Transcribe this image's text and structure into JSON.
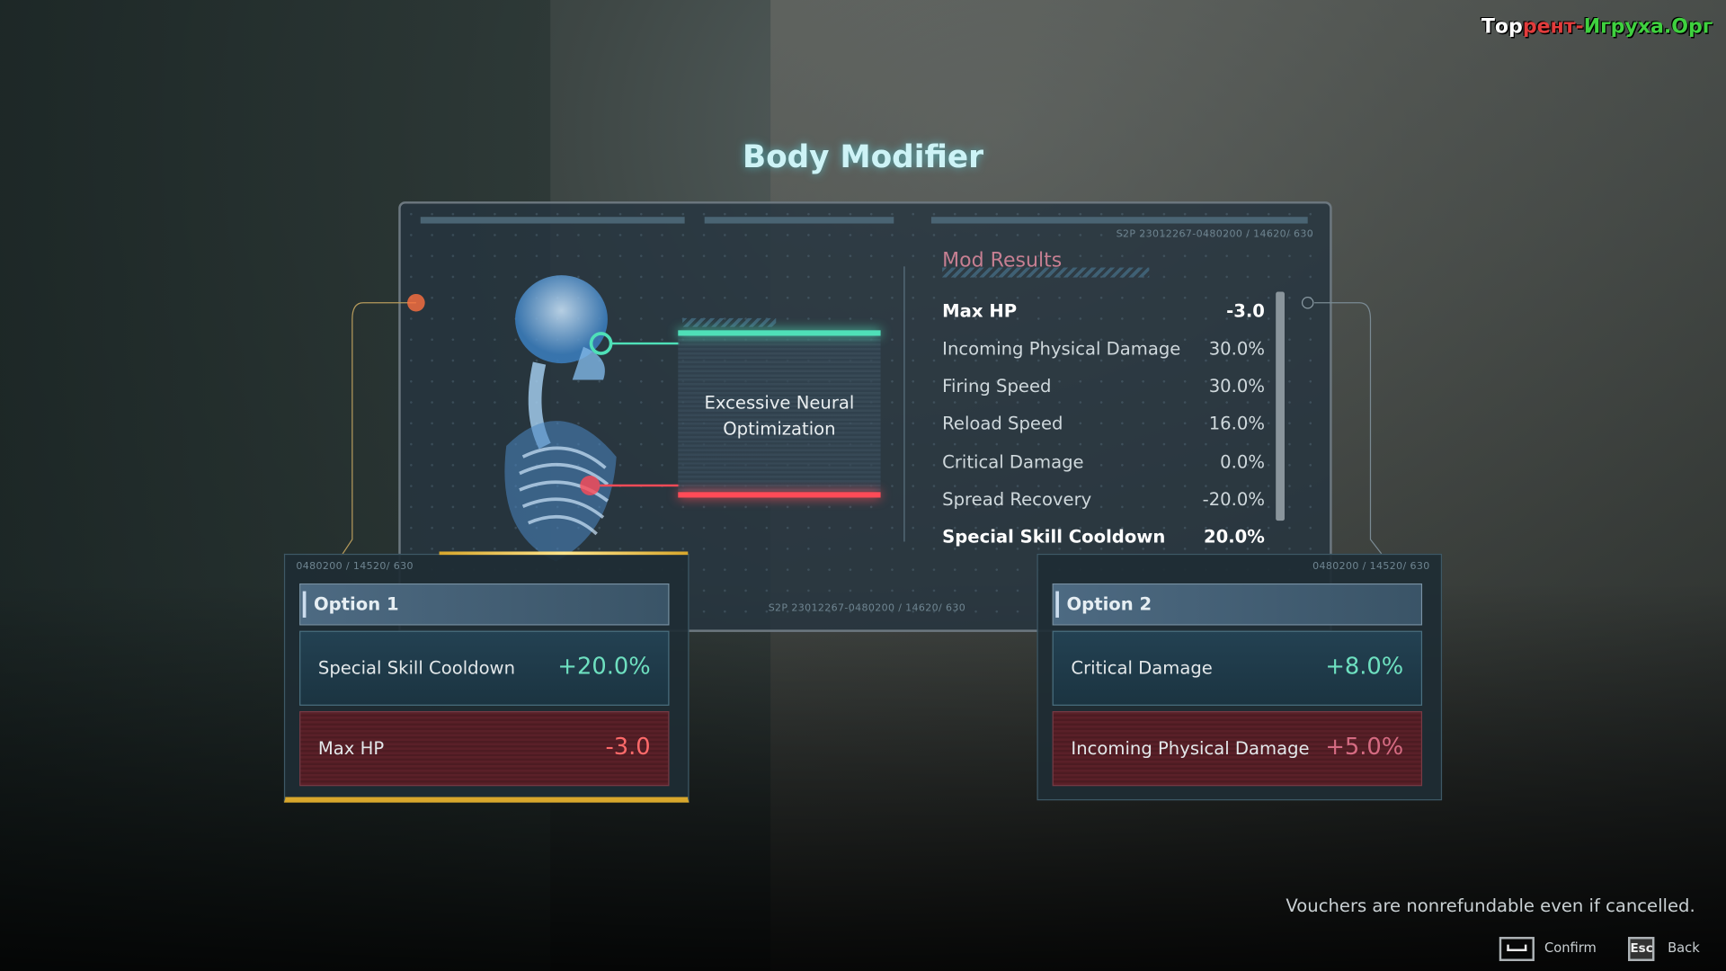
{
  "watermark": {
    "part1": "Тор",
    "part2": "рент-",
    "part3": "Игруха",
    "part4": ".Орг"
  },
  "title": "Body Modifier",
  "panel": {
    "code_top": "S2P 23012267-0480200 / 14620/ 630",
    "code_bottom": "S2P 23012267-0480200 / 14620/ 630",
    "mod_name": "Excessive Neural Optimization"
  },
  "mod_results": {
    "title": "Mod Results",
    "rows": [
      {
        "label": "Max HP",
        "value": "-3.0"
      },
      {
        "label": "Incoming Physical Damage",
        "value": "30.0%"
      },
      {
        "label": "Firing Speed",
        "value": "30.0%"
      },
      {
        "label": "Reload Speed",
        "value": "16.0%"
      },
      {
        "label": "Critical Damage",
        "value": "0.0%"
      },
      {
        "label": "Spread Recovery",
        "value": "-20.0%"
      },
      {
        "label": "Special Skill Cooldown",
        "value": "20.0%"
      }
    ]
  },
  "options": [
    {
      "code": "0480200 / 14520/ 630",
      "title": "Option 1",
      "positive": {
        "label": "Special Skill Cooldown",
        "value": "+20.0%"
      },
      "negative": {
        "label": "Max HP",
        "value": "-3.0"
      }
    },
    {
      "code": "0480200 / 14520/ 630",
      "title": "Option 2",
      "positive": {
        "label": "Critical Damage",
        "value": "+8.0%"
      },
      "negative": {
        "label": "Incoming Physical Damage",
        "value": "+5.0%"
      }
    }
  ],
  "footer": {
    "notice": "Vouchers are nonrefundable even if cancelled.",
    "confirm_key": "space-key-icon",
    "confirm": "Confirm",
    "back_key": "Esc",
    "back": "Back"
  },
  "colors": {
    "accent": "#4fe0b8",
    "negative": "#ff4b57",
    "selected": "#d8a72c",
    "mod_title": "#c67f92"
  }
}
